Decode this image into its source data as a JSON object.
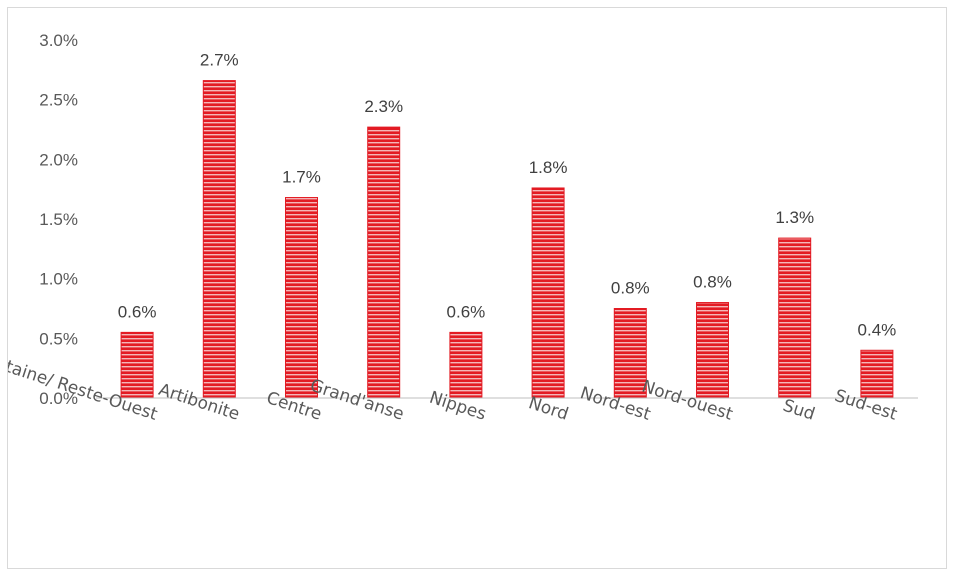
{
  "chart_data": {
    "type": "bar",
    "title": "",
    "xlabel": "",
    "ylabel": "",
    "categories": [
      "Aire Metropolitaine/ Reste-Ouest",
      "Artibonite",
      "Centre",
      "Grand'anse",
      "Nippes",
      "Nord",
      "Nord-est",
      "Nord-ouest",
      "Sud",
      "Sud-est"
    ],
    "values": [
      0.0055,
      0.0266,
      0.0168,
      0.0227,
      0.0055,
      0.0176,
      0.0075,
      0.008,
      0.0134,
      0.004
    ],
    "data_labels": [
      "0.6%",
      "2.7%",
      "1.7%",
      "2.3%",
      "0.6%",
      "1.8%",
      "0.8%",
      "0.8%",
      "1.3%",
      "0.4%"
    ],
    "ylim": [
      0,
      0.03
    ],
    "yticks": [
      0,
      0.005,
      0.01,
      0.015,
      0.02,
      0.025,
      0.03
    ],
    "ytick_labels": [
      "0.0%",
      "0.5%",
      "1.0%",
      "1.5%",
      "2.0%",
      "2.5%",
      "3.0%"
    ],
    "grid": false,
    "legend": "none",
    "bar_color": "#e31b23",
    "bar_pattern": "horizontal-stripes",
    "stripe_color": "#f4b6b9"
  }
}
